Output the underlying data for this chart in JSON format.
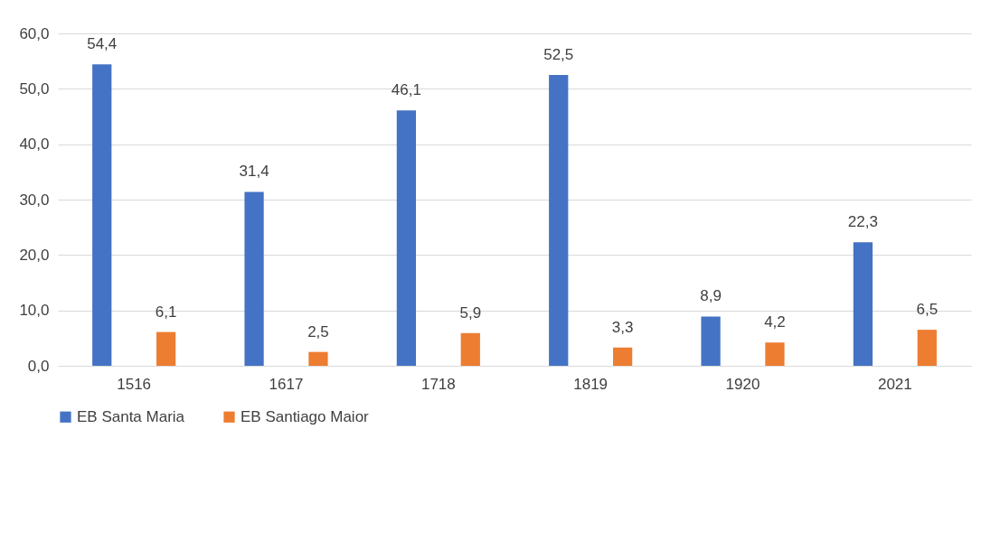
{
  "chart_data": {
    "type": "bar",
    "categories": [
      "1516",
      "1617",
      "1718",
      "1819",
      "1920",
      "2021"
    ],
    "series": [
      {
        "name": "EB Santa Maria",
        "color": "#4472c4",
        "values": [
          54.4,
          31.4,
          46.1,
          52.5,
          8.9,
          22.3
        ],
        "value_labels": [
          "54,4",
          "31,4",
          "46,1",
          "52,5",
          "8,9",
          "22,3"
        ]
      },
      {
        "name": "EB Santiago Maior",
        "color": "#ed7d31",
        "values": [
          6.1,
          2.5,
          5.9,
          3.3,
          4.2,
          6.5
        ],
        "value_labels": [
          "6,1",
          "2,5",
          "5,9",
          "3,3",
          "4,2",
          "6,5"
        ]
      }
    ],
    "ylim": [
      0,
      60
    ],
    "yticks": [
      {
        "value": 0,
        "label": "0,0"
      },
      {
        "value": 10,
        "label": "10,0"
      },
      {
        "value": 20,
        "label": "20,0"
      },
      {
        "value": 30,
        "label": "30,0"
      },
      {
        "value": 40,
        "label": "40,0"
      },
      {
        "value": 50,
        "label": "50,0"
      },
      {
        "value": 60,
        "label": "60,0"
      }
    ],
    "grid": "y",
    "legend": "bottom"
  }
}
